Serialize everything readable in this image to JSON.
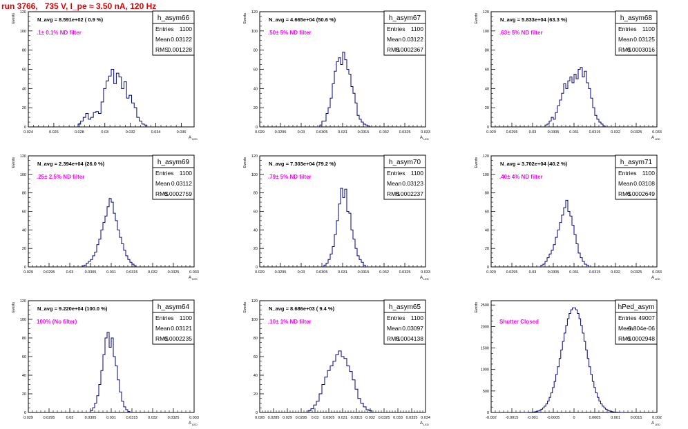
{
  "title": "run 3766,   735 V, I_pe ≈ 3.50 nA, 120 Hz",
  "colors": {
    "title": "#e00000",
    "annotation": "#ff00ff",
    "histogram": "#000080"
  },
  "y_axis_label": "Events",
  "x_axis_label": "A_{LED}",
  "stats_labels": [
    "Entries",
    "Mean",
    "RMS"
  ],
  "chart_data": [
    {
      "type": "histogram",
      "name": "h_asym66",
      "navg": "N_avg = 8.591e+02 ( 0.9 %)",
      "note": ".1± 0.1% ND filter",
      "entries": "1100",
      "mean": "0.03122",
      "rms": "0.001228",
      "xlim": [
        0.024,
        0.037
      ],
      "ylim": [
        0,
        120
      ],
      "xticks": [
        0.024,
        0.026,
        0.028,
        0.03,
        0.032,
        0.034,
        0.036
      ],
      "xtick_labels": [
        "0.024",
        "0.026",
        "0.028",
        "0.03",
        "0.032",
        "0.034",
        "0.036"
      ],
      "yticks": [
        0,
        20,
        40,
        60,
        80,
        100,
        120
      ],
      "bin_edges_start": 0.0279,
      "bin_width": 0.0002,
      "counts": [
        3,
        6,
        10,
        14,
        8,
        10,
        15,
        16,
        14,
        26,
        40,
        48,
        53,
        60,
        45,
        56,
        52,
        40,
        47,
        30,
        33,
        25,
        20,
        10,
        6,
        3,
        2
      ]
    },
    {
      "type": "histogram",
      "name": "h_asym67",
      "navg": "N_avg = 4.665e+04 (50.6 %)",
      "note": ".50± 5% ND filter",
      "entries": "1100",
      "mean": "0.03122",
      "rms": "0.0002367",
      "xlim": [
        0.029,
        0.033
      ],
      "ylim": [
        0,
        120
      ],
      "xticks": [
        0.029,
        0.0295,
        0.03,
        0.0305,
        0.031,
        0.0315,
        0.032,
        0.0325,
        0.033
      ],
      "xtick_labels": [
        "0.029",
        "0.0295",
        "0.03",
        "0.0305",
        "0.031",
        "0.0315",
        "0.032",
        "0.0325",
        "0.033"
      ],
      "yticks": [
        0,
        20,
        40,
        60,
        80,
        100,
        120
      ],
      "bin_edges_start": 0.03045,
      "bin_width": 5e-05,
      "counts": [
        2,
        6,
        6,
        14,
        20,
        30,
        45,
        58,
        68,
        72,
        65,
        78,
        70,
        60,
        55,
        42,
        35,
        25,
        12,
        8,
        5,
        3,
        2,
        1
      ]
    },
    {
      "type": "histogram",
      "name": "h_asym68",
      "navg": "N_avg = 5.833e+04 (63.3 %)",
      "note": ".63± 5% ND filter",
      "entries": "1100",
      "mean": "0.03125",
      "rms": "0.0003016",
      "xlim": [
        0.029,
        0.033
      ],
      "ylim": [
        0,
        120
      ],
      "xticks": [
        0.029,
        0.0295,
        0.03,
        0.0305,
        0.031,
        0.0315,
        0.032,
        0.0325,
        0.033
      ],
      "xtick_labels": [
        "0.029",
        "0.0295",
        "0.03",
        "0.0305",
        "0.031",
        "0.0315",
        "0.032",
        "0.0325",
        "0.033"
      ],
      "yticks": [
        0,
        20,
        40,
        60,
        80,
        100,
        120
      ],
      "bin_edges_start": 0.0303,
      "bin_width": 5e-05,
      "counts": [
        2,
        3,
        6,
        10,
        8,
        15,
        22,
        28,
        35,
        45,
        40,
        48,
        52,
        46,
        55,
        50,
        60,
        62,
        52,
        58,
        46,
        40,
        30,
        20,
        12,
        8,
        5,
        3,
        1
      ]
    },
    {
      "type": "histogram",
      "name": "h_asym69",
      "navg": "N_avg = 2.394e+04 (26.0 %)",
      "note": ".25± 2.5% ND filter",
      "entries": "1100",
      "mean": "0.03112",
      "rms": "0.0002759",
      "xlim": [
        0.029,
        0.033
      ],
      "ylim": [
        0,
        120
      ],
      "xticks": [
        0.029,
        0.0295,
        0.03,
        0.0305,
        0.031,
        0.0315,
        0.032,
        0.0325,
        0.033
      ],
      "xtick_labels": [
        "0.029",
        "0.0295",
        "0.03",
        "0.0305",
        "0.031",
        "0.0315",
        "0.032",
        "0.0325",
        "0.033"
      ],
      "yticks": [
        0,
        20,
        40,
        60,
        80,
        100,
        120
      ],
      "bin_edges_start": 0.0303,
      "bin_width": 5e-05,
      "counts": [
        1,
        2,
        4,
        6,
        8,
        12,
        16,
        24,
        30,
        40,
        48,
        55,
        65,
        74,
        70,
        58,
        50,
        40,
        32,
        25,
        18,
        12,
        8,
        5,
        3,
        1
      ]
    },
    {
      "type": "histogram",
      "name": "h_asym70",
      "navg": "N_avg = 7.303e+04 (79.2 %)",
      "note": ".79± 5% ND filter",
      "entries": "1100",
      "mean": "0.03123",
      "rms": "0.0002237",
      "xlim": [
        0.029,
        0.033
      ],
      "ylim": [
        0,
        120
      ],
      "xticks": [
        0.029,
        0.0295,
        0.03,
        0.0305,
        0.031,
        0.0315,
        0.032,
        0.0325,
        0.033
      ],
      "xtick_labels": [
        "0.029",
        "0.0295",
        "0.03",
        "0.0305",
        "0.031",
        "0.0315",
        "0.032",
        "0.0325",
        "0.033"
      ],
      "yticks": [
        0,
        20,
        40,
        60,
        80,
        100,
        120
      ],
      "bin_edges_start": 0.03055,
      "bin_width": 5e-05,
      "counts": [
        2,
        4,
        8,
        14,
        22,
        35,
        50,
        68,
        85,
        75,
        84,
        60,
        58,
        40,
        30,
        20,
        12,
        8,
        5,
        2
      ]
    },
    {
      "type": "histogram",
      "name": "h_asym71",
      "navg": "N_avg = 3.702e+04 (40.2 %)",
      "note": ".40± 4% ND filter",
      "entries": "1100",
      "mean": "0.03108",
      "rms": "0.0002649",
      "xlim": [
        0.029,
        0.033
      ],
      "ylim": [
        0,
        120
      ],
      "xticks": [
        0.029,
        0.0295,
        0.03,
        0.0305,
        0.031,
        0.0315,
        0.032,
        0.0325,
        0.033
      ],
      "xtick_labels": [
        "0.029",
        "0.0295",
        "0.03",
        "0.0305",
        "0.031",
        "0.0315",
        "0.032",
        "0.0325",
        "0.033"
      ],
      "yticks": [
        0,
        20,
        40,
        60,
        80,
        100,
        120
      ],
      "bin_edges_start": 0.0302,
      "bin_width": 5e-05,
      "counts": [
        2,
        3,
        6,
        10,
        14,
        18,
        24,
        32,
        40,
        48,
        56,
        64,
        72,
        60,
        55,
        45,
        35,
        25,
        15,
        10,
        6,
        3,
        2
      ]
    },
    {
      "type": "histogram",
      "name": "h_asym64",
      "navg": "N_avg = 9.220e+04 (100.0 %)",
      "note": "100% (No filter)",
      "entries": "1100",
      "mean": "0.03121",
      "rms": "0.0002235",
      "xlim": [
        0.029,
        0.033
      ],
      "ylim": [
        0,
        120
      ],
      "xticks": [
        0.029,
        0.0295,
        0.03,
        0.0305,
        0.031,
        0.0315,
        0.032,
        0.0325,
        0.033
      ],
      "xtick_labels": [
        "0.029",
        "0.0295",
        "0.03",
        "0.0305",
        "0.031",
        "0.0315",
        "0.032",
        "0.0325",
        "0.033"
      ],
      "yticks": [
        0,
        20,
        40,
        60,
        80,
        100,
        120
      ],
      "bin_edges_start": 0.0305,
      "bin_width": 5e-05,
      "counts": [
        2,
        5,
        10,
        18,
        30,
        45,
        62,
        80,
        86,
        70,
        80,
        60,
        50,
        35,
        22,
        12,
        6,
        3,
        1
      ]
    },
    {
      "type": "histogram",
      "name": "h_asym65",
      "navg": "N_avg = 8.686e+03 ( 9.4 %)",
      "note": ".10± 1% ND filter",
      "entries": "1100",
      "mean": "0.03097",
      "rms": "0.0004138",
      "xlim": [
        0.028,
        0.034
      ],
      "ylim": [
        0,
        120
      ],
      "xticks": [
        0.028,
        0.0285,
        0.029,
        0.0295,
        0.03,
        0.0305,
        0.031,
        0.0315,
        0.032,
        0.0325,
        0.033,
        0.0335,
        0.034
      ],
      "xtick_labels": [
        "0.028",
        "0.0285",
        "0.029",
        "0.0295",
        "0.03",
        "0.0305",
        "0.031",
        "0.0315",
        "0.032",
        "0.0325",
        "0.033",
        "0.0335",
        "0.034"
      ],
      "yticks": [
        0,
        20,
        40,
        60,
        80,
        100,
        120
      ],
      "bin_edges_start": 0.02975,
      "bin_width": 0.0001,
      "counts": [
        2,
        4,
        8,
        12,
        20,
        30,
        38,
        45,
        50,
        55,
        62,
        66,
        60,
        58,
        50,
        44,
        35,
        25,
        15,
        10,
        6,
        3,
        2
      ]
    },
    {
      "type": "histogram",
      "name": "hPed_asym",
      "navg": "",
      "note": "Shutter Closed",
      "entries": "49007",
      "mean": "-5.804e-06",
      "rms": "0.0002948",
      "xlim": [
        -0.002,
        0.002
      ],
      "ylim": [
        0,
        2600
      ],
      "xticks": [
        -0.002,
        -0.0015,
        -0.001,
        -0.0005,
        0,
        0.0005,
        0.001,
        0.0015,
        0.002
      ],
      "xtick_labels": [
        "-0.002",
        "-0.0015",
        "-0.001",
        "-0.0005",
        "0",
        "0.0005",
        "0.001",
        "0.0015",
        "0.002"
      ],
      "yticks": [
        0,
        500,
        1000,
        1500,
        2000,
        2500
      ],
      "gaussian": {
        "mean": 0,
        "sigma": 0.0002948,
        "peak": 2440,
        "bin_width": 4e-05,
        "range": [
          -0.0012,
          0.0012
        ]
      }
    }
  ]
}
